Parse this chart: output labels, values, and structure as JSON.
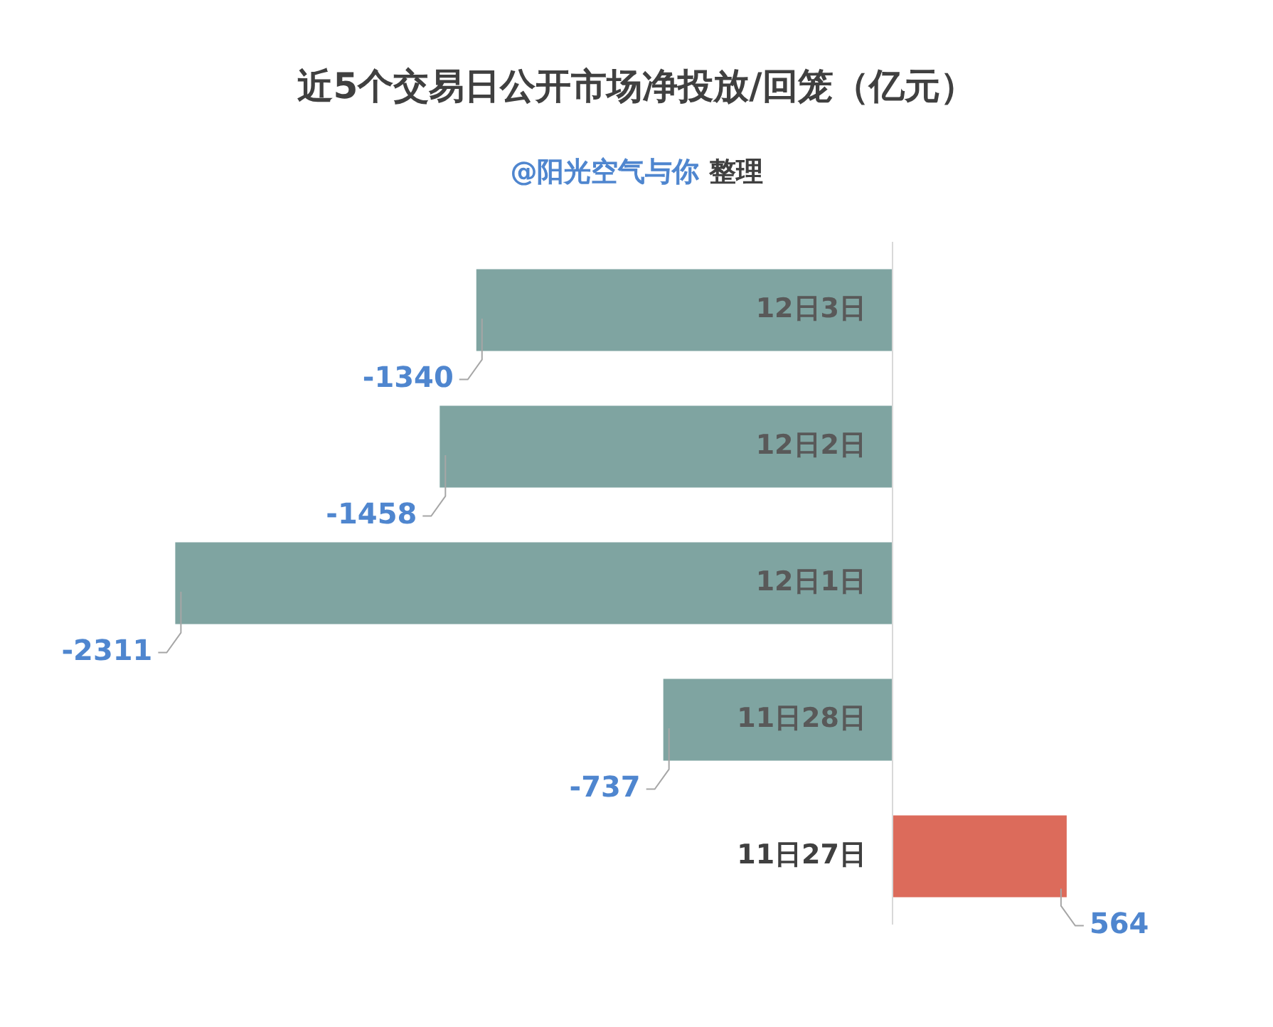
{
  "chart_data": {
    "type": "bar",
    "orientation": "horizontal",
    "title": "近5个交易日公开市场净投放/回笼（亿元）",
    "subtitle": "@阳光空气与你 整理",
    "categories": [
      "12日3日",
      "12日2日",
      "12日1日",
      "11日28日",
      "11日27日"
    ],
    "values": [
      -1340,
      -1458,
      -2311,
      -737,
      564
    ],
    "colors": [
      "#7fa4a1",
      "#7fa4a1",
      "#7fa4a1",
      "#7fa4a1",
      "#dc6b5b"
    ],
    "data_labels": true
  }
}
